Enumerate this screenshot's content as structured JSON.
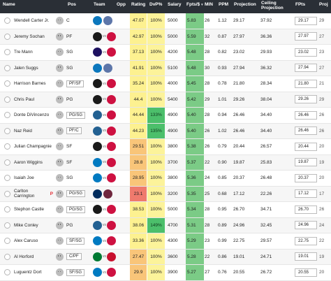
{
  "header": {
    "name": "Name",
    "pos": "Pos",
    "team": "Team",
    "opp": "Opp",
    "rating": "Rating",
    "dvp": "DvP%",
    "salary": "Salary",
    "fpts_per": "Fpts/$",
    "min": "MIN",
    "ppm": "PPM",
    "projection": "Projection",
    "ceiling1": "Ceiling",
    "ceiling2": "Projection",
    "fpts": "FPts",
    "proj_cut": "Proj",
    "sort_arrow": "▾"
  },
  "colors": {
    "header_bg": "#2a2f36",
    "dvp_yellow": "#fcf39a",
    "dvp_green": "#4cbf6b",
    "fpts_green": "#7bcb86",
    "rating_high": "#fdf190",
    "rating_mid": "#f9c579",
    "rating_low": "#ef7a6d",
    "flag": "#e2232b"
  },
  "rows": [
    {
      "name": "Wendell Carter Jr.",
      "flag": "",
      "pos": "C",
      "pos_box": false,
      "team_icon": "magic-logo",
      "opp_icon": "grizzlies-logo",
      "vs": "",
      "rating": "47.07",
      "rating_color": "#fdf190",
      "dvp": "100%",
      "dvp_high": false,
      "salary": "5000",
      "fpts": "5.83",
      "min": "26",
      "ppm": "1.12",
      "proj": "29.17",
      "ceil": "37.92",
      "fp": "29.17",
      "proj2": "29"
    },
    {
      "name": "Jeremy Sochan",
      "flag": "",
      "pos": "PF",
      "pos_box": false,
      "team_icon": "spurs-logo",
      "opp_icon": "rockets-logo",
      "vs": "vs",
      "rating": "42.97",
      "rating_color": "#fdf190",
      "dvp": "100%",
      "dvp_high": false,
      "salary": "5000",
      "fpts": "5.59",
      "min": "32",
      "ppm": "0.87",
      "proj": "27.97",
      "ceil": "36.36",
      "fp": "27.97",
      "proj2": "27"
    },
    {
      "name": "Tre Mann",
      "flag": "",
      "pos": "SG",
      "pos_box": false,
      "team_icon": "hornets-logo",
      "opp_icon": "rockets-logo",
      "vs": "vs",
      "rating": "37.13",
      "rating_color": "#fdf190",
      "dvp": "100%",
      "dvp_high": false,
      "salary": "4200",
      "fpts": "5.48",
      "min": "28",
      "ppm": "0.82",
      "proj": "23.02",
      "ceil": "29.93",
      "fp": "23.02",
      "proj2": "23"
    },
    {
      "name": "Jalen Suggs",
      "flag": "",
      "pos": "SG",
      "pos_box": false,
      "team_icon": "magic-logo",
      "opp_icon": "grizzlies-logo",
      "vs": "",
      "rating": "41.91",
      "rating_color": "#fdf190",
      "dvp": "100%",
      "dvp_high": false,
      "salary": "5100",
      "fpts": "5.48",
      "min": "30",
      "ppm": "0.93",
      "proj": "27.94",
      "ceil": "36.32",
      "fp": "27.94",
      "proj2": "27"
    },
    {
      "name": "Harrison Barnes",
      "flag": "",
      "pos": "PF/SF",
      "pos_box": true,
      "team_icon": "spurs-logo",
      "opp_icon": "rockets-logo",
      "vs": "vs",
      "rating": "35.24",
      "rating_color": "#fdf190",
      "dvp": "100%",
      "dvp_high": false,
      "salary": "4000",
      "fpts": "5.45",
      "min": "28",
      "ppm": "0.78",
      "proj": "21.80",
      "ceil": "28.34",
      "fp": "21.80",
      "proj2": "21"
    },
    {
      "name": "Chris Paul",
      "flag": "",
      "pos": "PG",
      "pos_box": false,
      "team_icon": "spurs-logo",
      "opp_icon": "rockets-logo",
      "vs": "vs",
      "rating": "44.4",
      "rating_color": "#fdf190",
      "dvp": "100%",
      "dvp_high": false,
      "salary": "5400",
      "fpts": "5.42",
      "min": "29",
      "ppm": "1.01",
      "proj": "29.26",
      "ceil": "38.04",
      "fp": "29.26",
      "proj2": "29"
    },
    {
      "name": "Donte DiVincenzo",
      "flag": "",
      "pos": "PG/SG",
      "pos_box": true,
      "team_icon": "timberwolves-logo",
      "opp_icon": "raptors-logo",
      "vs": "vs",
      "rating": "44.44",
      "rating_color": "#fdf190",
      "dvp": "133%",
      "dvp_high": true,
      "salary": "4900",
      "fpts": "5.40",
      "min": "28",
      "ppm": "0.94",
      "proj": "26.46",
      "ceil": "34.40",
      "fp": "26.46",
      "proj2": "26"
    },
    {
      "name": "Naz Reid",
      "flag": "",
      "pos": "PF/C",
      "pos_box": true,
      "team_icon": "timberwolves-logo",
      "opp_icon": "raptors-logo",
      "vs": "vs",
      "rating": "44.23",
      "rating_color": "#fdf190",
      "dvp": "135%",
      "dvp_high": true,
      "salary": "4900",
      "fpts": "5.40",
      "min": "26",
      "ppm": "1.02",
      "proj": "26.46",
      "ceil": "34.40",
      "fp": "26.46",
      "proj2": "26"
    },
    {
      "name": "Julian Champagnie",
      "flag": "",
      "pos": "SF",
      "pos_box": false,
      "team_icon": "spurs-logo",
      "opp_icon": "rockets-logo",
      "vs": "vs",
      "rating": "29.51",
      "rating_color": "#f9c579",
      "dvp": "100%",
      "dvp_high": false,
      "salary": "3800",
      "fpts": "5.38",
      "min": "26",
      "ppm": "0.79",
      "proj": "20.44",
      "ceil": "26.57",
      "fp": "20.44",
      "proj2": "20"
    },
    {
      "name": "Aaron Wiggins",
      "flag": "",
      "pos": "SF",
      "pos_box": false,
      "team_icon": "thunder-logo",
      "opp_icon": "bulls-logo",
      "vs": "vs",
      "rating": "28.8",
      "rating_color": "#f9c579",
      "dvp": "100%",
      "dvp_high": false,
      "salary": "3700",
      "fpts": "5.37",
      "min": "22",
      "ppm": "0.90",
      "proj": "19.87",
      "ceil": "25.83",
      "fp": "19.87",
      "proj2": "19"
    },
    {
      "name": "Isaiah Joe",
      "flag": "",
      "pos": "SG",
      "pos_box": false,
      "team_icon": "thunder-logo",
      "opp_icon": "bulls-logo",
      "vs": "vs",
      "rating": "28.95",
      "rating_color": "#f9c579",
      "dvp": "100%",
      "dvp_high": false,
      "salary": "3800",
      "fpts": "5.36",
      "min": "24",
      "ppm": "0.85",
      "proj": "20.37",
      "ceil": "26.48",
      "fp": "20.37",
      "proj2": "20"
    },
    {
      "name": "Carlton Carrington",
      "flag": "P",
      "pos": "PG/SG",
      "pos_box": true,
      "team_icon": "wizards-logo",
      "opp_icon": "cavaliers-logo",
      "vs": "",
      "rating": "23.1",
      "rating_color": "#ef7a6d",
      "dvp": "100%",
      "dvp_high": false,
      "salary": "3200",
      "fpts": "5.35",
      "min": "25",
      "ppm": "0.68",
      "proj": "17.12",
      "ceil": "22.26",
      "fp": "17.12",
      "proj2": "17"
    },
    {
      "name": "Stephon Castle",
      "flag": "",
      "pos": "PG/SG",
      "pos_box": true,
      "team_icon": "spurs-logo",
      "opp_icon": "rockets-logo",
      "vs": "vs",
      "rating": "38.53",
      "rating_color": "#fdf190",
      "dvp": "100%",
      "dvp_high": false,
      "salary": "5000",
      "fpts": "5.34",
      "min": "28",
      "ppm": "0.95",
      "proj": "26.70",
      "ceil": "34.71",
      "fp": "26.70",
      "proj2": "26"
    },
    {
      "name": "Mike Conley",
      "flag": "",
      "pos": "PG",
      "pos_box": false,
      "team_icon": "timberwolves-logo",
      "opp_icon": "raptors-logo",
      "vs": "vs",
      "rating": "38.06",
      "rating_color": "#fdf190",
      "dvp": "149%",
      "dvp_high": true,
      "salary": "4700",
      "fpts": "5.31",
      "min": "28",
      "ppm": "0.89",
      "proj": "24.96",
      "ceil": "32.45",
      "fp": "24.96",
      "proj2": "24"
    },
    {
      "name": "Alex Caruso",
      "flag": "",
      "pos": "SF/SG",
      "pos_box": true,
      "team_icon": "thunder-logo",
      "opp_icon": "bulls-logo",
      "vs": "vs",
      "rating": "33.36",
      "rating_color": "#fdf190",
      "dvp": "100%",
      "dvp_high": false,
      "salary": "4300",
      "fpts": "5.29",
      "min": "23",
      "ppm": "0.99",
      "proj": "22.75",
      "ceil": "29.57",
      "fp": "22.75",
      "proj2": "22"
    },
    {
      "name": "Al Horford",
      "flag": "",
      "pos": "C/PF",
      "pos_box": true,
      "team_icon": "celtics-logo",
      "opp_icon": "pistons-logo",
      "vs": "vs",
      "rating": "27.47",
      "rating_color": "#f9c579",
      "dvp": "100%",
      "dvp_high": false,
      "salary": "3600",
      "fpts": "5.28",
      "min": "22",
      "ppm": "0.86",
      "proj": "19.01",
      "ceil": "24.71",
      "fp": "19.01",
      "proj2": "19"
    },
    {
      "name": "Luguentz Dort",
      "flag": "",
      "pos": "SF/SG",
      "pos_box": true,
      "team_icon": "thunder-logo",
      "opp_icon": "bulls-logo",
      "vs": "vs",
      "rating": "29.9",
      "rating_color": "#f9c579",
      "dvp": "100%",
      "dvp_high": false,
      "salary": "3900",
      "fpts": "5.27",
      "min": "27",
      "ppm": "0.76",
      "proj": "20.55",
      "ceil": "26.72",
      "fp": "20.55",
      "proj2": "20"
    }
  ]
}
